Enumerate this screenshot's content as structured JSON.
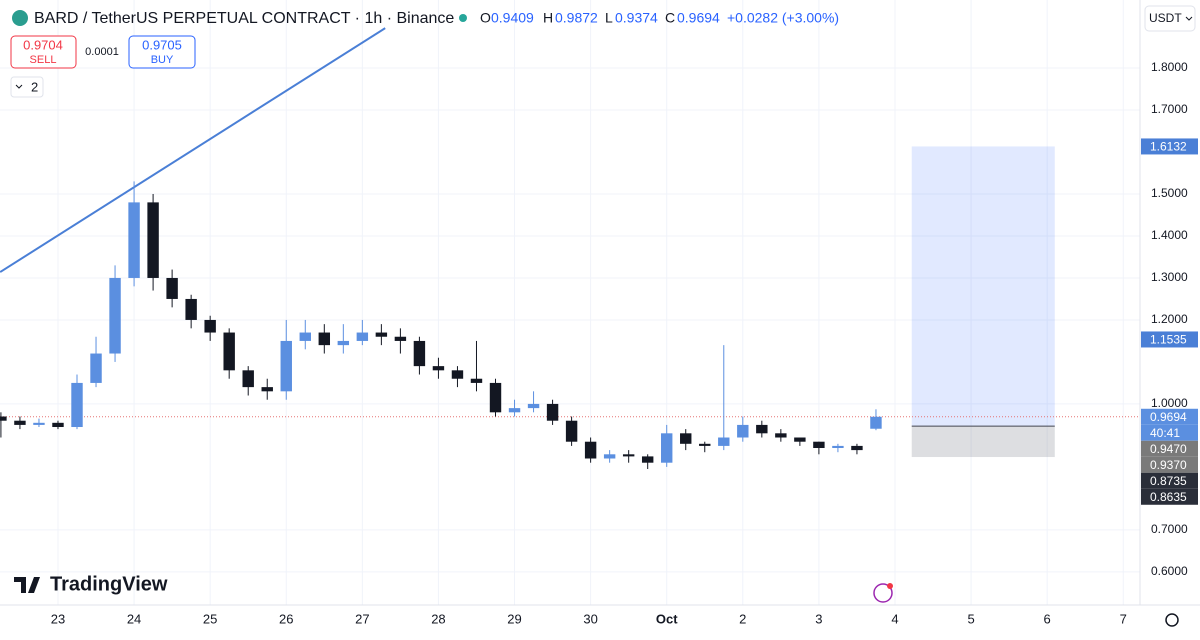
{
  "header": {
    "title": "BARD / TetherUS PERPETUAL CONTRACT · 1h · Binance",
    "o_label": "O",
    "o": "0.9409",
    "h_label": "H",
    "h": "0.9872",
    "l_label": "L",
    "l": "0.9374",
    "c_label": "C",
    "c": "0.9694",
    "change": "+0.0282 (+3.00%)"
  },
  "trade_panel": {
    "sell_price": "0.9704",
    "sell": "SELL",
    "spread": "0.0001",
    "buy_price": "0.9705",
    "buy": "BUY",
    "indicators": "2"
  },
  "currency": "USDT",
  "brand": "TradingView",
  "chart_data": {
    "type": "candlestick",
    "x": [
      -0.75,
      -0.5,
      -0.25,
      0,
      0.25,
      0.5,
      0.75,
      1,
      1.25,
      1.5,
      1.75,
      2,
      2.25,
      2.5,
      2.75,
      3,
      3.25,
      3.5,
      3.75,
      4,
      4.25,
      4.5,
      4.75,
      5,
      5.25,
      5.5,
      5.75,
      6,
      6.25,
      6.5,
      6.75,
      7,
      7.25,
      7.5,
      7.75,
      8,
      8.25,
      8.5,
      8.75,
      9,
      9.25,
      9.5,
      9.75,
      10,
      10.25,
      10.5,
      10.75
    ],
    "open": [
      0.97,
      0.96,
      0.95,
      0.955,
      0.945,
      1.05,
      1.12,
      1.3,
      1.48,
      1.3,
      1.25,
      1.2,
      1.17,
      1.08,
      1.04,
      1.03,
      1.15,
      1.17,
      1.14,
      1.15,
      1.17,
      1.16,
      1.15,
      1.09,
      1.08,
      1.06,
      1.05,
      0.98,
      0.99,
      1.0,
      0.96,
      0.91,
      0.87,
      0.88,
      0.875,
      0.86,
      0.93,
      0.905,
      0.9,
      0.92,
      0.95,
      0.93,
      0.92,
      0.91,
      0.895,
      0.9,
      0.9409
    ],
    "high": [
      0.98,
      0.97,
      0.965,
      0.96,
      1.07,
      1.16,
      1.33,
      1.53,
      1.5,
      1.32,
      1.26,
      1.21,
      1.18,
      1.09,
      1.06,
      1.2,
      1.2,
      1.19,
      1.19,
      1.2,
      1.19,
      1.18,
      1.16,
      1.11,
      1.09,
      1.15,
      1.06,
      1.01,
      1.03,
      1.01,
      0.97,
      0.92,
      0.89,
      0.89,
      0.88,
      0.95,
      0.94,
      0.91,
      1.14,
      0.97,
      0.96,
      0.94,
      0.92,
      0.91,
      0.905,
      0.905,
      0.9872
    ],
    "low": [
      0.92,
      0.94,
      0.945,
      0.94,
      0.94,
      1.04,
      1.1,
      1.28,
      1.27,
      1.23,
      1.18,
      1.15,
      1.06,
      1.02,
      1.01,
      1.01,
      1.13,
      1.12,
      1.12,
      1.14,
      1.14,
      1.12,
      1.07,
      1.06,
      1.04,
      1.03,
      0.97,
      0.97,
      0.98,
      0.95,
      0.9,
      0.86,
      0.86,
      0.86,
      0.845,
      0.85,
      0.89,
      0.885,
      0.89,
      0.91,
      0.92,
      0.91,
      0.9,
      0.88,
      0.885,
      0.88,
      0.9374
    ],
    "close": [
      0.96,
      0.95,
      0.955,
      0.945,
      1.05,
      1.12,
      1.3,
      1.48,
      1.3,
      1.25,
      1.2,
      1.17,
      1.08,
      1.04,
      1.03,
      1.15,
      1.17,
      1.14,
      1.15,
      1.17,
      1.16,
      1.15,
      1.09,
      1.08,
      1.06,
      1.05,
      0.98,
      0.99,
      1.0,
      0.96,
      0.91,
      0.87,
      0.88,
      0.875,
      0.86,
      0.93,
      0.905,
      0.9,
      0.92,
      0.95,
      0.93,
      0.92,
      0.91,
      0.895,
      0.9,
      0.89,
      0.9694
    ],
    "up_color": "#5b8fe0",
    "down_color": "#131722",
    "xlim": [
      -0.762,
      14.22
    ],
    "ylim": [
      0.533,
      1.962
    ],
    "xticks": [
      {
        "value": 0,
        "label": "23"
      },
      {
        "value": 1,
        "label": "24"
      },
      {
        "value": 2,
        "label": "25"
      },
      {
        "value": 3,
        "label": "26"
      },
      {
        "value": 4,
        "label": "27"
      },
      {
        "value": 5,
        "label": "28"
      },
      {
        "value": 6,
        "label": "29"
      },
      {
        "value": 7,
        "label": "30"
      },
      {
        "value": 8,
        "label": "Oct"
      },
      {
        "value": 9,
        "label": "2"
      },
      {
        "value": 10,
        "label": "3"
      },
      {
        "value": 11,
        "label": "4"
      },
      {
        "value": 12,
        "label": "5"
      },
      {
        "value": 13,
        "label": "6"
      },
      {
        "value": 14,
        "label": "7"
      }
    ],
    "yticks": [
      {
        "value": 1.8,
        "label": "1.8000"
      },
      {
        "value": 1.7,
        "label": "1.7000"
      },
      {
        "value": 1.5,
        "label": "1.5000"
      },
      {
        "value": 1.4,
        "label": "1.4000"
      },
      {
        "value": 1.3,
        "label": "1.3000"
      },
      {
        "value": 1.2,
        "label": "1.2000"
      },
      {
        "value": 1.0,
        "label": "1.0000"
      },
      {
        "value": 0.7,
        "label": "0.7000"
      },
      {
        "value": 0.6,
        "label": "0.6000"
      }
    ],
    "grid": true,
    "trendline": {
      "x": [
        -0.76,
        4.3
      ],
      "y": [
        1.314,
        1.895
      ],
      "color": "#4a7fd6"
    },
    "position": {
      "x": [
        11.22,
        13.1
      ],
      "target": 1.6132,
      "entry": 0.947,
      "stop": 0.8735
    },
    "last_price": 0.9694,
    "countdown": "40:41",
    "price_labels": [
      {
        "value": 1.6132,
        "color": "#4a7fd6"
      },
      {
        "value": 1.1535,
        "color": "#4a7fd6"
      },
      {
        "value": 0.9694,
        "color": "#5b8fe0"
      },
      {
        "value": 0.947,
        "label": "0.9470",
        "color": "#7a7a7a"
      },
      {
        "value": 0.937,
        "label": "0.9370",
        "color": "#7a7a7a"
      },
      {
        "value": 0.8735,
        "color": "#2a2e39"
      },
      {
        "value": 0.8635,
        "color": "#2a2e39"
      }
    ]
  }
}
